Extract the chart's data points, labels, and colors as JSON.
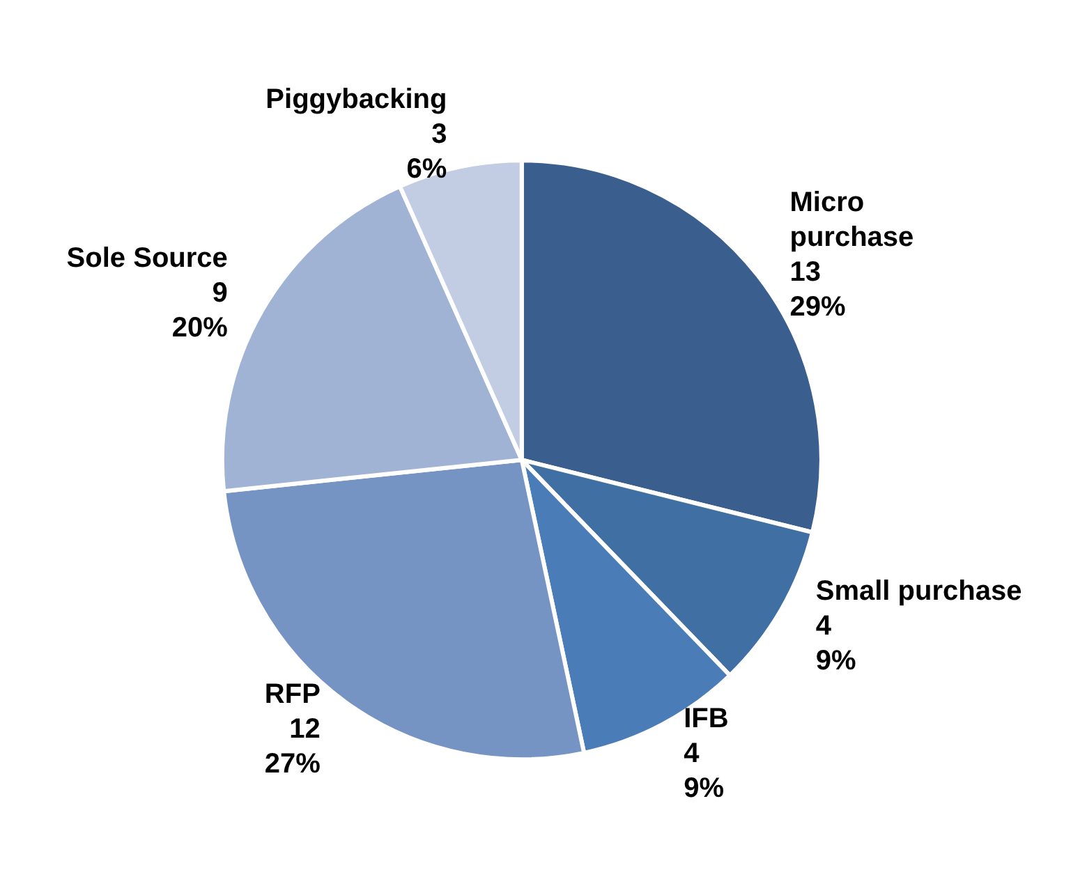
{
  "chart_data": {
    "type": "pie",
    "categories": [
      "Micro\npurchase",
      "Small purchase",
      "IFB",
      "RFP",
      "Sole Source",
      "Piggybacking"
    ],
    "values": [
      13,
      4,
      4,
      12,
      9,
      3
    ],
    "value_labels": [
      "13\n29%",
      "4\n9%",
      "4\n9%",
      "12\n27%",
      "9\n20%",
      "3\n6%"
    ],
    "colors": [
      "#3a5f8f",
      "#406fa3",
      "#4a7cb8",
      "#7594c4",
      "#a1b3d4",
      "#c2cde3"
    ],
    "legend": false
  }
}
